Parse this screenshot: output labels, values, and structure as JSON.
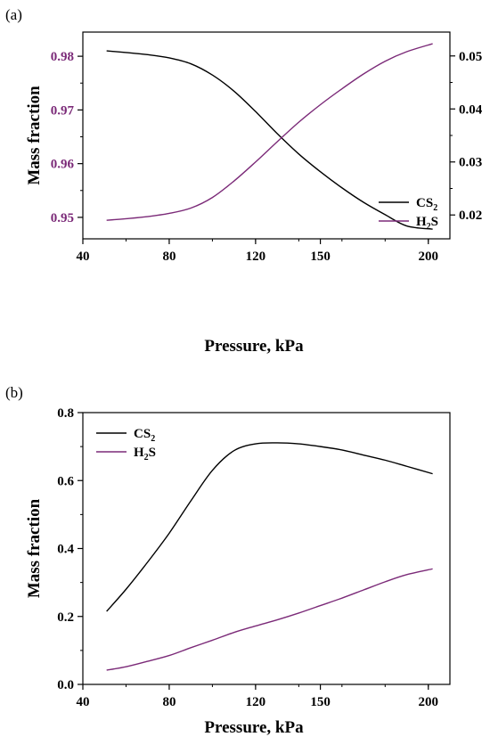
{
  "chart_data": [
    {
      "panel": "(a)",
      "type": "line",
      "xlabel": "Pressure, kPa",
      "ylabel": "Mass fraction",
      "xlim": [
        40,
        210
      ],
      "x_ticks": [
        "40",
        "80",
        "120",
        "150",
        "200"
      ],
      "x_tick_values": [
        40,
        80,
        120,
        150,
        200
      ],
      "ylim_left": [
        0.946,
        0.9845
      ],
      "y_ticks_left": [
        "0.95",
        "0.96",
        "0.97",
        "0.98"
      ],
      "y_tick_values_left": [
        0.95,
        0.96,
        0.97,
        0.98
      ],
      "ylim_right": [
        0.0155,
        0.0545
      ],
      "y_ticks_right": [
        "0.02",
        "0.03",
        "0.04",
        "0.05"
      ],
      "y_tick_values_right": [
        0.02,
        0.03,
        0.04,
        0.05
      ],
      "legend_position": "right",
      "series": [
        {
          "name": "CS",
          "name_sub": "2",
          "axis": "left",
          "color": "#000000",
          "x": [
            51,
            60,
            70,
            80,
            90,
            100,
            110,
            120,
            130,
            140,
            150,
            160,
            170,
            180,
            190,
            202
          ],
          "y": [
            0.981,
            0.9807,
            0.9803,
            0.9797,
            0.9786,
            0.9765,
            0.9735,
            0.9697,
            0.9656,
            0.9618,
            0.9585,
            0.9555,
            0.9528,
            0.9505,
            0.9484,
            0.9478
          ]
        },
        {
          "name": "H",
          "name_sub": "2",
          "name_suffix": "S",
          "axis": "right",
          "color": "#7b2a78",
          "x": [
            51,
            60,
            70,
            80,
            90,
            100,
            110,
            120,
            130,
            140,
            150,
            160,
            170,
            180,
            190,
            202
          ],
          "y": [
            0.019,
            0.0193,
            0.0197,
            0.0203,
            0.0213,
            0.0233,
            0.0264,
            0.03,
            0.0338,
            0.0375,
            0.0408,
            0.0438,
            0.0466,
            0.049,
            0.0508,
            0.0523
          ]
        }
      ]
    },
    {
      "panel": "(b)",
      "type": "line",
      "xlabel": "Pressure, kPa",
      "ylabel": "Mass fraction",
      "xlim": [
        40,
        210
      ],
      "x_ticks": [
        "40",
        "80",
        "120",
        "150",
        "200"
      ],
      "x_tick_values": [
        40,
        80,
        120,
        150,
        200
      ],
      "ylim": [
        0.0,
        0.8
      ],
      "y_ticks": [
        "0.0",
        "0.2",
        "0.4",
        "0.6",
        "0.8"
      ],
      "y_tick_values": [
        0.0,
        0.2,
        0.4,
        0.6,
        0.8
      ],
      "legend_position": "top-left",
      "series": [
        {
          "name": "CS",
          "name_sub": "2",
          "color": "#000000",
          "x": [
            51,
            60,
            70,
            80,
            90,
            100,
            110,
            120,
            130,
            140,
            150,
            160,
            170,
            180,
            190,
            202
          ],
          "y": [
            0.215,
            0.28,
            0.36,
            0.445,
            0.54,
            0.63,
            0.688,
            0.708,
            0.711,
            0.708,
            0.7,
            0.69,
            0.675,
            0.66,
            0.642,
            0.62
          ]
        },
        {
          "name": "H",
          "name_sub": "2",
          "name_suffix": "S",
          "color": "#7b2a78",
          "x": [
            51,
            60,
            70,
            80,
            90,
            100,
            110,
            120,
            130,
            140,
            150,
            160,
            170,
            180,
            190,
            202
          ],
          "y": [
            0.042,
            0.052,
            0.068,
            0.085,
            0.108,
            0.13,
            0.153,
            0.172,
            0.19,
            0.21,
            0.232,
            0.254,
            0.278,
            0.302,
            0.323,
            0.34
          ]
        }
      ]
    }
  ]
}
